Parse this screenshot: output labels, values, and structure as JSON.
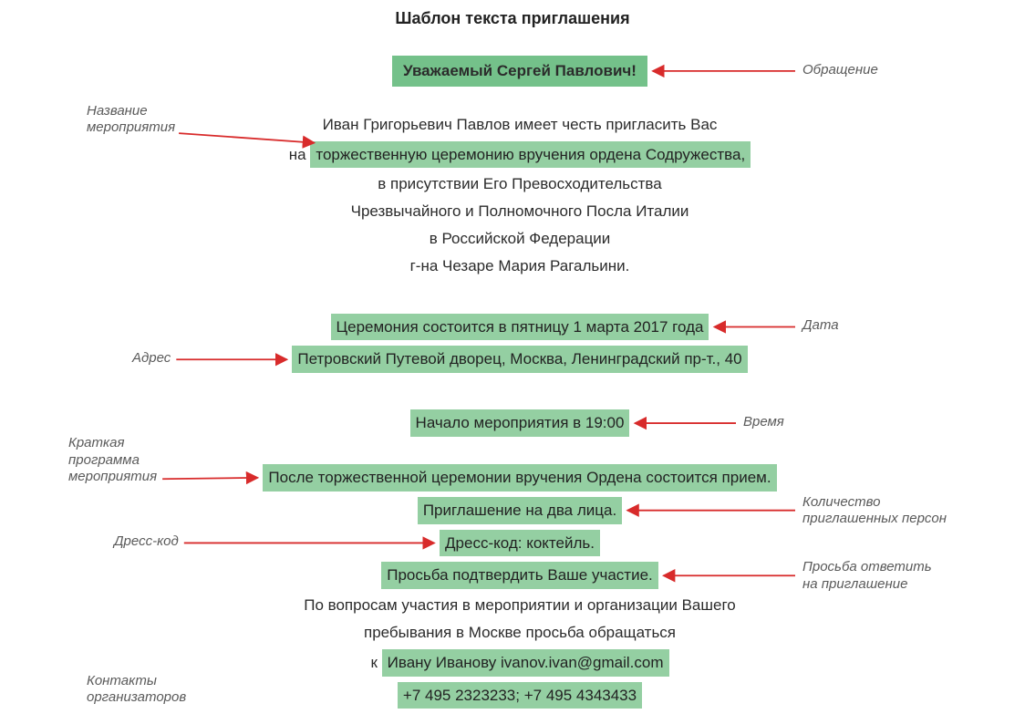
{
  "title": "Шаблон текста приглашения",
  "colors": {
    "highlight": "#94cfa2",
    "highlight_strong": "#74c18a",
    "arrow": "#d82b2b",
    "text": "#2b2b2b",
    "annot_text": "#5a5a5a",
    "background": "#ffffff"
  },
  "fontsize": {
    "title": 18,
    "body": 17,
    "annot": 15
  },
  "invitation": {
    "salutation": "Уважаемый Сергей Павлович!",
    "host_line": "Иван Григорьевич Павлов имеет честь пригласить Вас",
    "event_prefix": "на ",
    "event_name": "торжественную церемонию вручения ордена Содружества,",
    "presence1": "в присутствии Его Превосходительства",
    "presence2": "Чрезвычайного и Полномочного Посла Италии",
    "presence3": "в Российской Федерации",
    "presence4": "г-на Чезаре Мария Рагальини.",
    "date": "Церемония состоится в пятницу 1 марта 2017 года",
    "address": "Петровский Путевой дворец, Москва, Ленинградский пр-т., 40",
    "time": "Начало мероприятия в 19:00",
    "program": "После торжественной церемонии вручения Ордена состоится прием.",
    "persons": "Приглашение на два лица.",
    "dresscode": "Дресс-код: коктейль.",
    "rsvp": "Просьба подтвердить Ваше участие.",
    "contact_intro1": "По вопросам участия в мероприятии и организации Вашего",
    "contact_intro2": "пребывания в Москве просьба обращаться",
    "contact_name_prefix": "к ",
    "contact_name": "Ивану Иванову ivanov.ivan@gmail.com",
    "phones": "+7 495 2323233; +7 495 4343433"
  },
  "annotations": {
    "salutation": "Обращение",
    "event": "Название\nмероприятия",
    "date": "Дата",
    "address": "Адрес",
    "time": "Время",
    "program": "Краткая\nпрограмма\nмероприятия",
    "persons": "Количество\nприглашенных персон",
    "dresscode": "Дресс-код",
    "rsvp": "Просьба ответить\nна приглашение",
    "contacts": "Контакты\nорганизаторов"
  },
  "arrow_style": {
    "stroke_width": 1.8,
    "head_size": 7
  }
}
